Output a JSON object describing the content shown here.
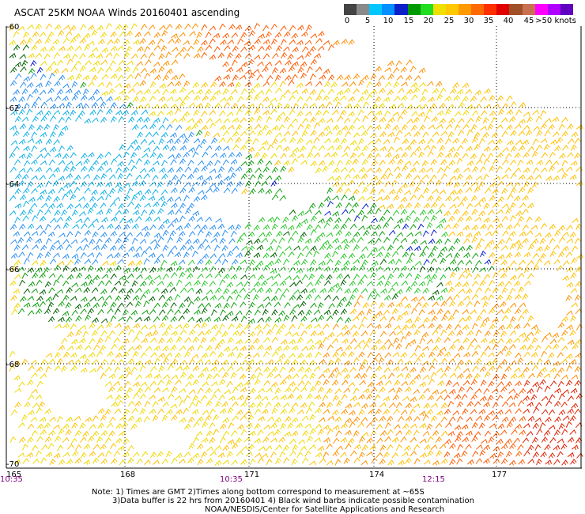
{
  "title": "ASCAT 25KM NOAA Winds 20160401 ascending",
  "legend": {
    "colors": [
      "#444444",
      "#8a8a8a",
      "#00c8ff",
      "#0090ff",
      "#0a20c8",
      "#009a00",
      "#22dd22",
      "#f0e000",
      "#ffc800",
      "#ff9a00",
      "#ff6a00",
      "#ff3000",
      "#e00000",
      "#a05028",
      "#c87050",
      "#ff00ff",
      "#b000ff",
      "#6000c0"
    ],
    "labels": [
      "0",
      "5",
      "10",
      "15",
      "20",
      "25",
      "30",
      "35",
      "40",
      "45",
      ">50 knots"
    ]
  },
  "lat_labels": [
    "-60",
    "-62",
    "-64",
    "-66",
    "-68",
    "-70"
  ],
  "lon_labels": [
    "165",
    "168",
    "171",
    "174",
    "177"
  ],
  "times": [
    "10:35",
    "10:35",
    "12:15"
  ],
  "notes": [
    "Note: 1) Times are GMT 2)Times along bottom correspond to measurement at ~65S",
    "3)Data buffer is 22 hrs from 20160401 4) Black wind barbs indicate possible contamination",
    "NOAA/NESDIS/Center for Satellite Applications and Research"
  ]
}
